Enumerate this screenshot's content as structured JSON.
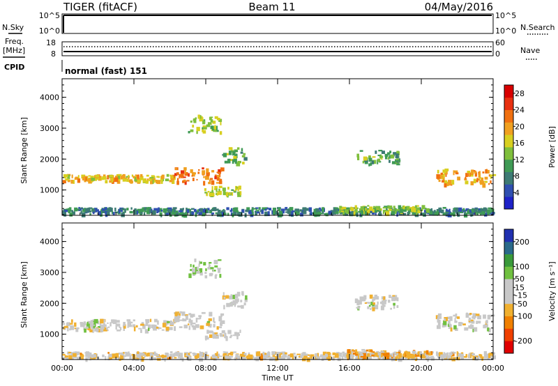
{
  "header": {
    "radar": "TIGER (fitACF)",
    "beam": "Beam 11",
    "date": "04/May/2016"
  },
  "top_panels": {
    "nsky_label": "N.Sky",
    "nsky_ticks": [
      "10^5",
      "10^0"
    ],
    "nsearch_label": "N.Search",
    "nsearch_ticks": [
      "10^5",
      "10^0"
    ],
    "freq_label": "Freq.",
    "freq_unit": "[MHz]",
    "freq_ticks": [
      "18",
      "8"
    ],
    "nave_label": "Nave",
    "nave_ticks": [
      "60",
      "0"
    ],
    "cpid_label": "CPID",
    "cpid_value": "normal (fast) 151"
  },
  "colors": {
    "power_scale": [
      "#1e22c8",
      "#2f4fb0",
      "#3d7a74",
      "#3f9a55",
      "#7fbf3c",
      "#d8cf20",
      "#f0a020",
      "#f07010",
      "#e83010",
      "#d80000"
    ],
    "velocity_scale": [
      "#e00000",
      "#f04000",
      "#f08000",
      "#f0b030",
      "#c8c8c8",
      "#c8c8c8",
      "#70c040",
      "#3a9a3a",
      "#2a6a8a",
      "#2030b0"
    ]
  },
  "chart_data": [
    {
      "type": "heatmap",
      "name_panel": "power",
      "xlabel": "",
      "ylabel": "Slant Range [km]",
      "x_ticks": [
        "00:00",
        "04:00",
        "08:00",
        "12:00",
        "16:00",
        "20:00",
        "00:00"
      ],
      "y_ticks": [
        "1000",
        "2000",
        "3000",
        "4000"
      ],
      "ylim": [
        180,
        4600
      ],
      "xlim_hours": [
        0,
        24
      ],
      "colorbar_label": "Power [dB]",
      "colorbar_ticks": [
        "4",
        "8",
        "12",
        "16",
        "20",
        "24",
        "28"
      ],
      "colorbar_range": [
        0,
        30
      ],
      "features": [
        {
          "t_start": 0.0,
          "t_end": 6.2,
          "range_start": 1300,
          "range_end": 1520,
          "level": 18
        },
        {
          "t_start": 6.2,
          "t_end": 8.9,
          "range_start": 1250,
          "range_end": 1750,
          "level": 22
        },
        {
          "t_start": 8.9,
          "t_end": 10.2,
          "range_start": 1900,
          "range_end": 2400,
          "level": 12
        },
        {
          "t_start": 7.9,
          "t_end": 9.9,
          "range_start": 900,
          "range_end": 1150,
          "level": 14
        },
        {
          "t_start": 7.0,
          "t_end": 8.8,
          "range_start": 2900,
          "range_end": 3450,
          "level": 14
        },
        {
          "t_start": 0.0,
          "t_end": 24.0,
          "range_start": 250,
          "range_end": 450,
          "level": 8
        },
        {
          "t_start": 15.4,
          "t_end": 20.3,
          "range_start": 300,
          "range_end": 520,
          "level": 14
        },
        {
          "t_start": 16.3,
          "t_end": 18.7,
          "range_start": 1850,
          "range_end": 2300,
          "level": 12
        },
        {
          "t_start": 20.8,
          "t_end": 24.0,
          "range_start": 1200,
          "range_end": 1700,
          "level": 20
        }
      ]
    },
    {
      "type": "heatmap",
      "name_panel": "velocity",
      "xlabel": "Time UT",
      "ylabel": "Slant Range [km]",
      "x_ticks": [
        "00:00",
        "04:00",
        "08:00",
        "12:00",
        "16:00",
        "20:00",
        "00:00"
      ],
      "y_ticks": [
        "1000",
        "2000",
        "3000",
        "4000"
      ],
      "ylim": [
        180,
        4600
      ],
      "xlim_hours": [
        0,
        24
      ],
      "colorbar_label": "Velocity [m s⁻¹]",
      "colorbar_ticks": [
        "-200",
        "-100",
        "-50",
        "-15",
        "15",
        "50",
        "100",
        "200"
      ],
      "colorbar_range": [
        -250,
        250
      ],
      "features": [
        {
          "t_start": 0.0,
          "t_end": 6.2,
          "range_start": 1150,
          "range_end": 1500,
          "level": -5
        },
        {
          "t_start": 6.2,
          "t_end": 8.9,
          "range_start": 1250,
          "range_end": 1750,
          "level": -10
        },
        {
          "t_start": 8.9,
          "t_end": 10.2,
          "range_start": 1900,
          "range_end": 2400,
          "level": -5
        },
        {
          "t_start": 7.9,
          "t_end": 9.9,
          "range_start": 900,
          "range_end": 1150,
          "level": -5
        },
        {
          "t_start": 7.0,
          "t_end": 8.8,
          "range_start": 2900,
          "range_end": 3450,
          "level": 40
        },
        {
          "t_start": 0.0,
          "t_end": 24.0,
          "range_start": 250,
          "range_end": 450,
          "level": -40
        },
        {
          "t_start": 15.4,
          "t_end": 20.3,
          "range_start": 300,
          "range_end": 520,
          "level": -70
        },
        {
          "t_start": 16.3,
          "t_end": 18.7,
          "range_start": 1850,
          "range_end": 2300,
          "level": -5
        },
        {
          "t_start": 20.8,
          "t_end": 24.0,
          "range_start": 1200,
          "range_end": 1700,
          "level": -5
        }
      ]
    }
  ]
}
